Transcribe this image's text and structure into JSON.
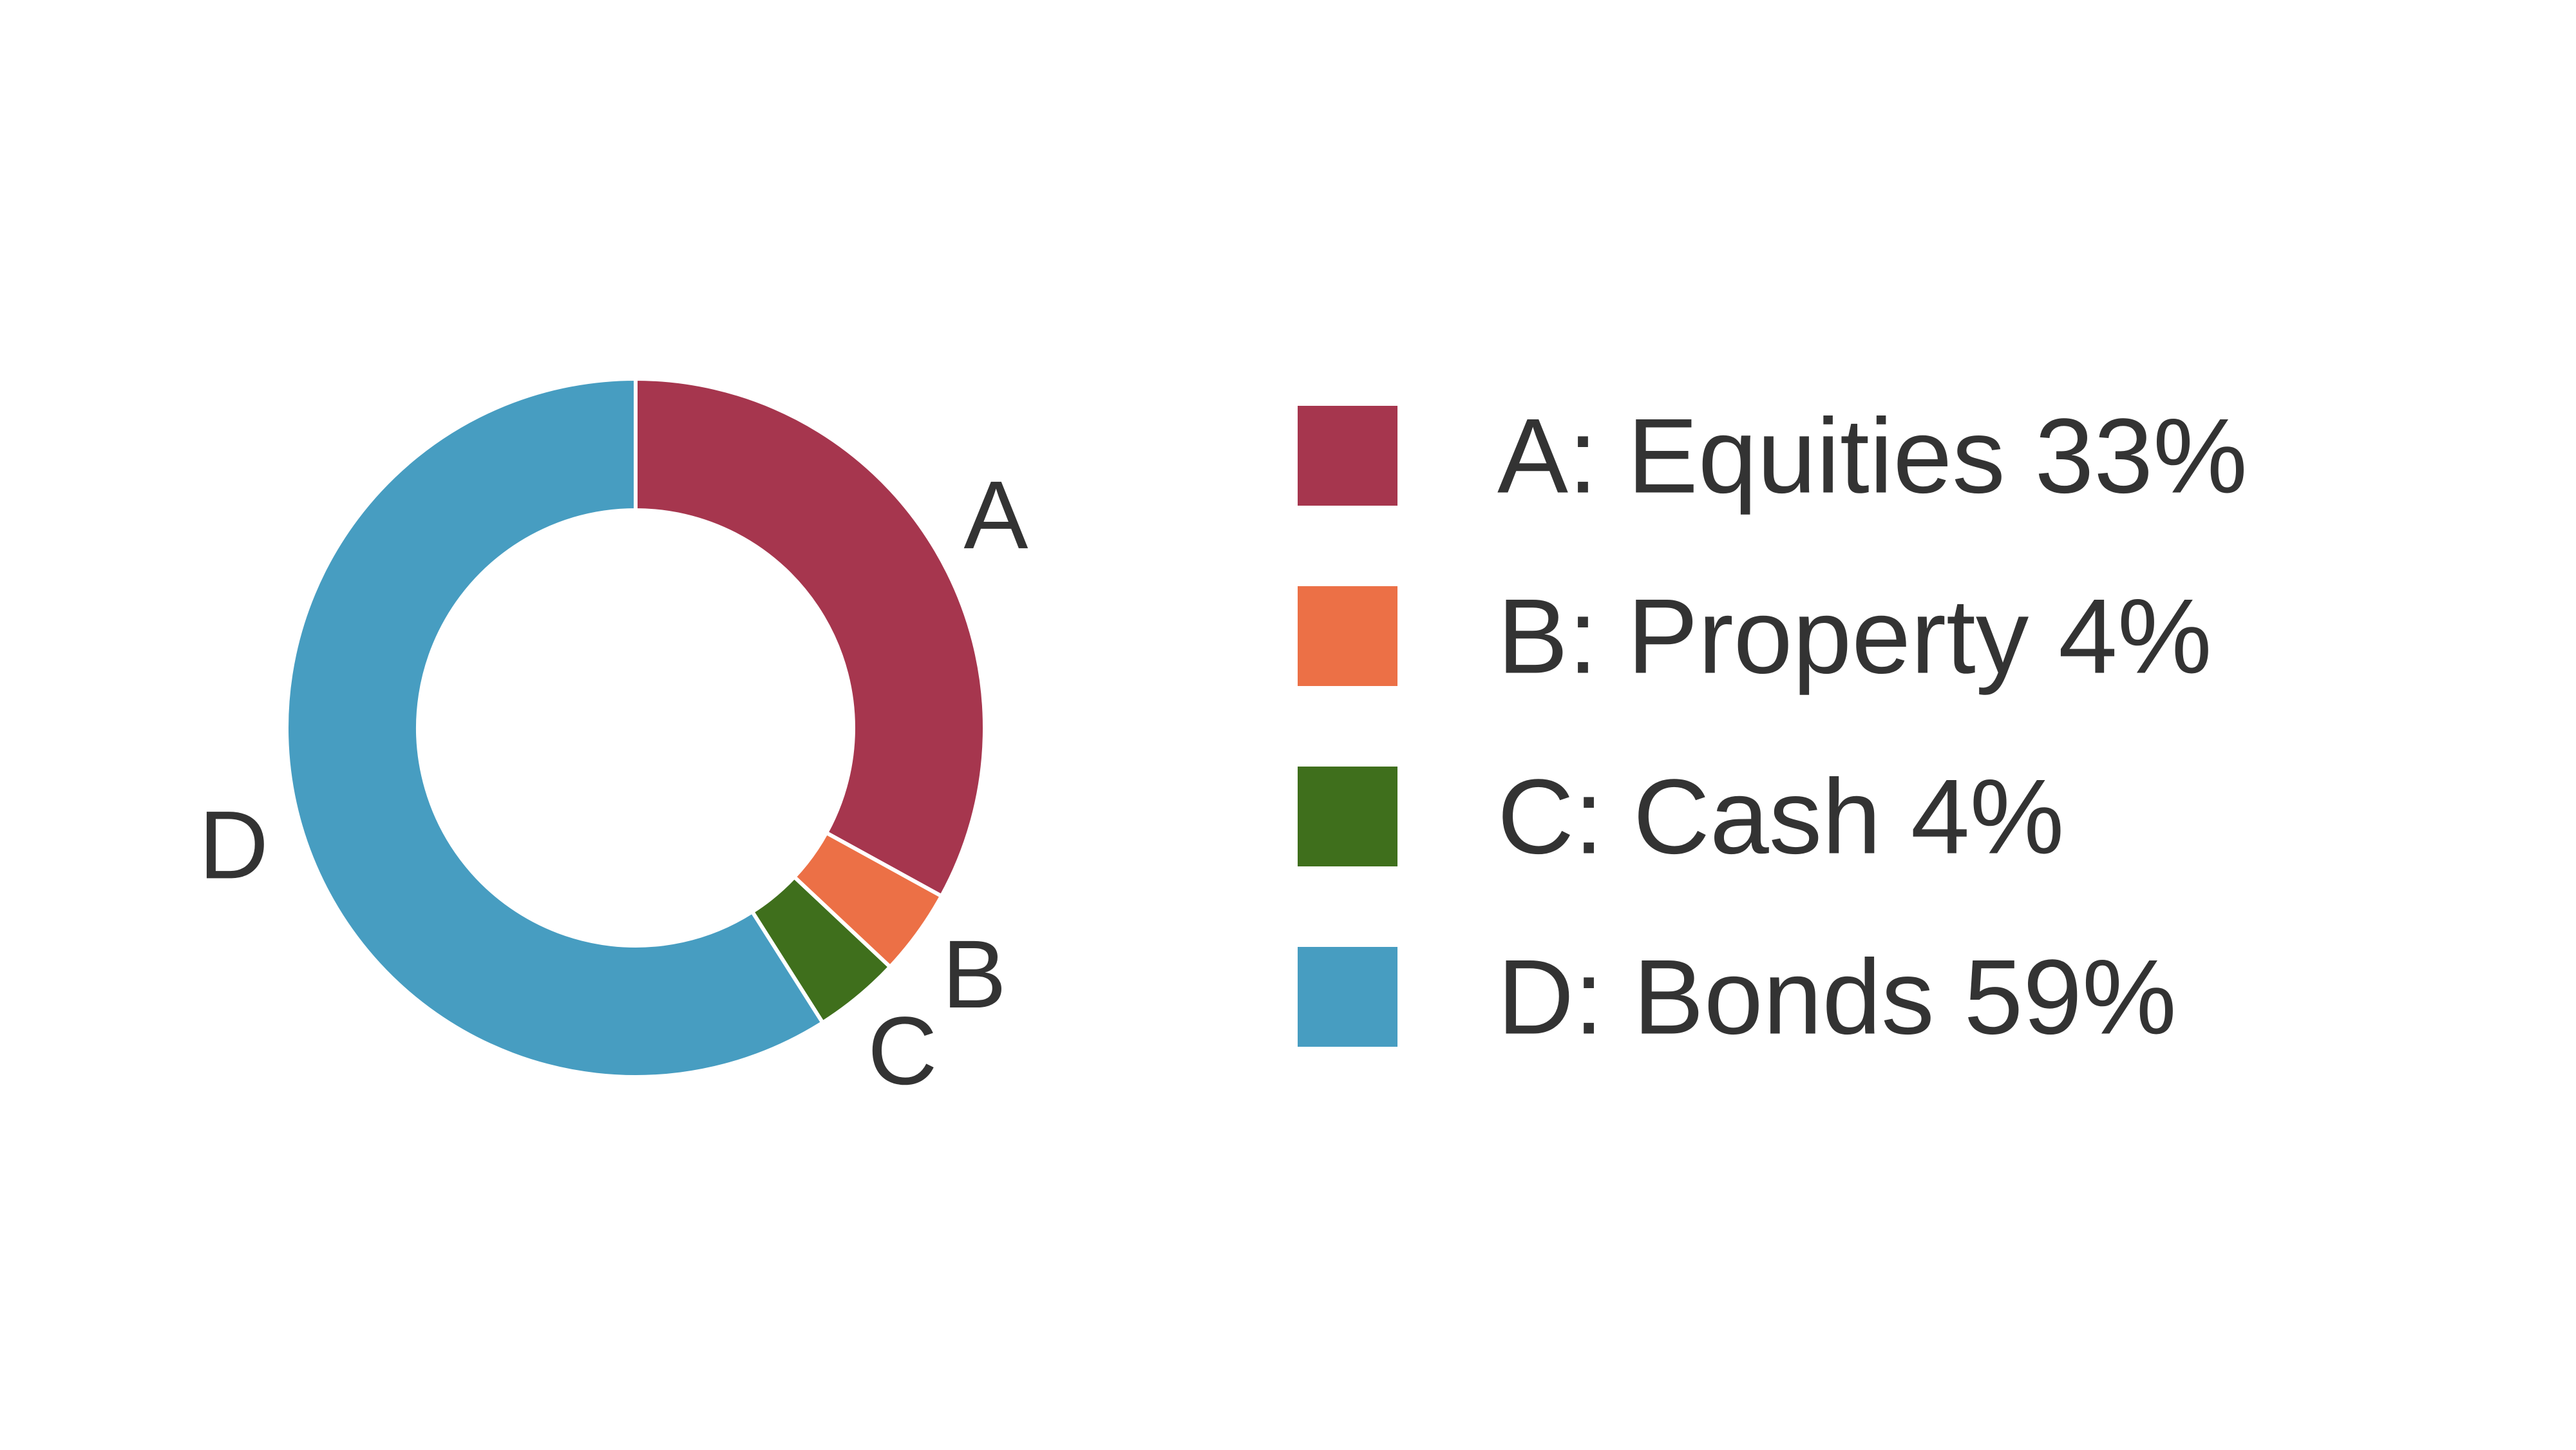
{
  "chart_data": {
    "type": "pie",
    "style": "donut",
    "slices": [
      {
        "id": "A",
        "name": "Equities",
        "value": 33,
        "color": "#A6364E",
        "legend_label": "A: Equities 33%"
      },
      {
        "id": "B",
        "name": "Property",
        "value": 4,
        "color": "#EC7046",
        "legend_label": "B: Property 4%"
      },
      {
        "id": "C",
        "name": "Cash",
        "value": 4,
        "color": "#3F6F1C",
        "legend_label": "C: Cash 4%"
      },
      {
        "id": "D",
        "name": "Bonds",
        "value": 59,
        "color": "#479DC1",
        "legend_label": "D: Bonds 59%"
      }
    ],
    "units": "%",
    "legend_position": "right",
    "start_angle_deg": 0,
    "direction": "clockwise"
  }
}
